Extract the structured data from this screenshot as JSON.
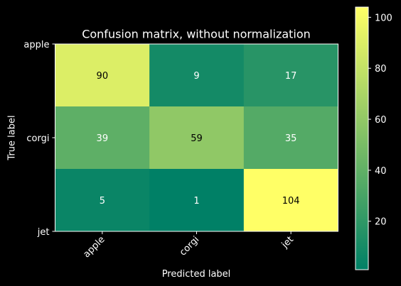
{
  "chart_data": {
    "type": "heatmap",
    "title": "Confusion matrix, without normalization",
    "xlabel": "Predicted label",
    "ylabel": "True label",
    "x_categories": [
      "apple",
      "corgi",
      "jet"
    ],
    "y_categories": [
      "apple",
      "corgi",
      "jet"
    ],
    "values": [
      [
        90,
        9,
        17
      ],
      [
        39,
        59,
        35
      ],
      [
        5,
        1,
        104
      ]
    ],
    "colormap": "summer",
    "colormap_low": "#008066",
    "colormap_high": "#ffff66",
    "value_range": [
      1,
      104
    ],
    "colorbar_ticks": [
      20,
      40,
      60,
      80,
      100
    ],
    "text_color_dark": "#000000",
    "text_color_light": "#ffffff",
    "background": "#000000",
    "foreground": "#ffffff"
  }
}
